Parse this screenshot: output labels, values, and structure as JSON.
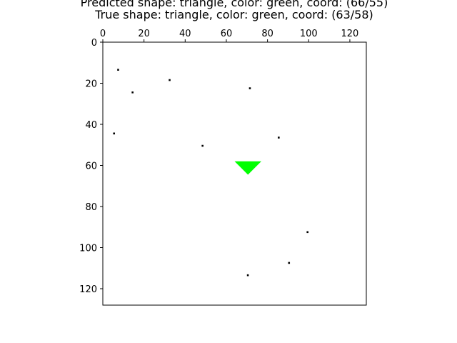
{
  "chart_data": {
    "type": "image",
    "title_lines": [
      "Predicted shape: triangle, color: green, coord: (66/55)",
      "True shape: triangle, color: green, coord: (63/58)"
    ],
    "xlim": [
      0,
      128
    ],
    "ylim": [
      128,
      0
    ],
    "x_axis_position": "top",
    "xticks": [
      0,
      20,
      40,
      60,
      80,
      100,
      120
    ],
    "yticks": [
      0,
      20,
      40,
      60,
      80,
      100,
      120
    ],
    "grid": false,
    "background_color": "#ffffff",
    "noise_pixel_color": "#000000",
    "noise_pixels": [
      {
        "x": 7,
        "y": 13
      },
      {
        "x": 32,
        "y": 18
      },
      {
        "x": 14,
        "y": 24
      },
      {
        "x": 71,
        "y": 22
      },
      {
        "x": 5,
        "y": 44
      },
      {
        "x": 85,
        "y": 46
      },
      {
        "x": 48,
        "y": 50
      },
      {
        "x": 99,
        "y": 92
      },
      {
        "x": 90,
        "y": 107
      },
      {
        "x": 70,
        "y": 113
      }
    ],
    "shape": {
      "type": "triangle",
      "orientation": "down",
      "color": "#00ff00",
      "vertices": [
        [
          64,
          58
        ],
        [
          77,
          58
        ],
        [
          70.5,
          64.5
        ]
      ]
    }
  }
}
